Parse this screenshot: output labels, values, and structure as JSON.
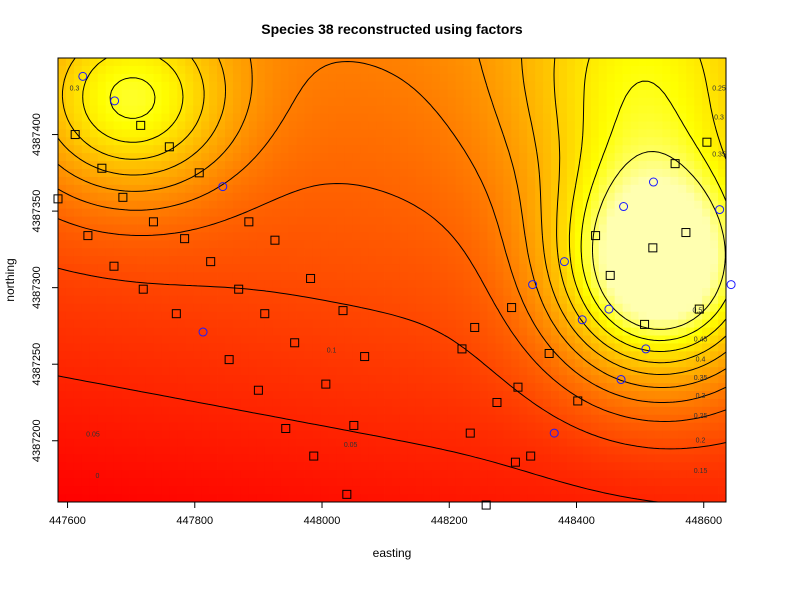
{
  "chart_data": {
    "type": "heatmap",
    "title": "Species 38 reconstructed using factors",
    "xlabel": "easting",
    "ylabel": "northing",
    "xlim": [
      447585,
      448635
    ],
    "ylim": [
      4387160,
      4387450
    ],
    "x_ticks": [
      447600,
      447800,
      448000,
      448200,
      448400,
      448600
    ],
    "x_tick_labels": [
      "447600",
      "447800",
      "448000",
      "448200",
      "448400",
      "448600"
    ],
    "y_ticks": [
      4387200,
      4387250,
      4387300,
      4387350,
      4387400
    ],
    "y_tick_labels": [
      "4387200",
      "4387250",
      "4387300",
      "4387350",
      "4387400"
    ],
    "colormap": [
      "#ff0000",
      "#ff4e00",
      "#ff8800",
      "#ffc000",
      "#ffff00",
      "#ffffb0"
    ],
    "surface_range": [
      0,
      0.55
    ],
    "surface_centers": [
      {
        "x": 448530,
        "y": 4387310,
        "amp": 0.5,
        "sx": 160,
        "sy": 70
      },
      {
        "x": 447700,
        "y": 4387420,
        "amp": 0.3,
        "sx": 160,
        "sy": 60
      },
      {
        "x": 448500,
        "y": 4387430,
        "amp": 0.22,
        "sx": 200,
        "sy": 90
      }
    ],
    "contour_levels": [
      0,
      0.05,
      0.1,
      0.15,
      0.2,
      0.25,
      0.3,
      0.35,
      0.4,
      0.45,
      0.5
    ],
    "contour_labels": [
      {
        "text": "0.3",
        "x": 447611,
        "y": 4387430
      },
      {
        "text": "0.25",
        "x": 448624,
        "y": 4387430
      },
      {
        "text": "0.3",
        "x": 448624,
        "y": 4387411
      },
      {
        "text": "0.35",
        "x": 448624,
        "y": 4387387
      },
      {
        "text": "0.5",
        "x": 448590,
        "y": 4387285
      },
      {
        "text": "0.45",
        "x": 448595,
        "y": 4387266
      },
      {
        "text": "0.4",
        "x": 448595,
        "y": 4387253
      },
      {
        "text": "0.35",
        "x": 448595,
        "y": 4387241
      },
      {
        "text": "0.3",
        "x": 448595,
        "y": 4387229
      },
      {
        "text": "0.25",
        "x": 448595,
        "y": 4387216
      },
      {
        "text": "0.2",
        "x": 448595,
        "y": 4387200
      },
      {
        "text": "0.15",
        "x": 448595,
        "y": 4387180
      },
      {
        "text": "0.1",
        "x": 448015,
        "y": 4387259
      },
      {
        "text": "0.05",
        "x": 447640,
        "y": 4387204
      },
      {
        "text": "0.05",
        "x": 448045,
        "y": 4387197
      },
      {
        "text": "0",
        "x": 447647,
        "y": 4387177
      }
    ],
    "series": [
      {
        "marker": "square",
        "points": [
          [
            447585,
            4387358
          ],
          [
            447612,
            4387400
          ],
          [
            447632,
            4387334
          ],
          [
            447654,
            4387378
          ],
          [
            447673,
            4387314
          ],
          [
            447687,
            4387359
          ],
          [
            447715,
            4387406
          ],
          [
            447719,
            4387299
          ],
          [
            447735,
            4387343
          ],
          [
            447760,
            4387392
          ],
          [
            447771,
            4387283
          ],
          [
            447784,
            4387332
          ],
          [
            447807,
            4387375
          ],
          [
            447825,
            4387317
          ],
          [
            447854,
            4387253
          ],
          [
            447869,
            4387299
          ],
          [
            447885,
            4387343
          ],
          [
            447900,
            4387233
          ],
          [
            447910,
            4387283
          ],
          [
            447926,
            4387331
          ],
          [
            447943,
            4387208
          ],
          [
            447957,
            4387264
          ],
          [
            447982,
            4387306
          ],
          [
            447987,
            4387190
          ],
          [
            448006,
            4387237
          ],
          [
            448033,
            4387285
          ],
          [
            448039,
            4387165
          ],
          [
            448050,
            4387210
          ],
          [
            448067,
            4387255
          ],
          [
            448220,
            4387260
          ],
          [
            448233,
            4387205
          ],
          [
            448240,
            4387274
          ],
          [
            448258,
            4387158
          ],
          [
            448275,
            4387225
          ],
          [
            448298,
            4387287
          ],
          [
            448304,
            4387186
          ],
          [
            448308,
            4387235
          ],
          [
            448328,
            4387190
          ],
          [
            448357,
            4387257
          ],
          [
            448402,
            4387226
          ],
          [
            448430,
            4387334
          ],
          [
            448453,
            4387308
          ],
          [
            448507,
            4387276
          ],
          [
            448520,
            4387326
          ],
          [
            448555,
            4387381
          ],
          [
            448572,
            4387336
          ],
          [
            448593,
            4387286
          ],
          [
            448605,
            4387395
          ]
        ]
      },
      {
        "marker": "circle",
        "points": [
          [
            447624,
            4387438
          ],
          [
            447674,
            4387422
          ],
          [
            447844,
            4387366
          ],
          [
            447813,
            4387271
          ],
          [
            448331,
            4387302
          ],
          [
            448365,
            4387205
          ],
          [
            448381,
            4387317
          ],
          [
            448409,
            4387279
          ],
          [
            448451,
            4387286
          ],
          [
            448470,
            4387240
          ],
          [
            448474,
            4387353
          ],
          [
            448509,
            4387260
          ],
          [
            448521,
            4387369
          ],
          [
            448625,
            4387351
          ],
          [
            448643,
            4387302
          ]
        ]
      }
    ],
    "grid": false,
    "legend": "none"
  }
}
